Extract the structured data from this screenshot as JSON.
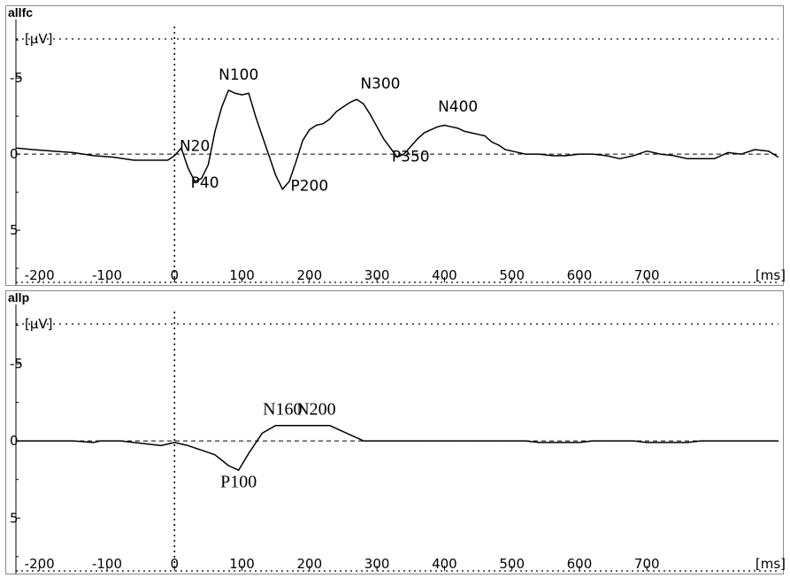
{
  "chart_data": [
    {
      "type": "line",
      "title": "allfc",
      "ylabel": "[µV]",
      "xlabel": "[ms]",
      "xlim": [
        -235,
        895
      ],
      "ylim": [
        -8.5,
        8.6
      ],
      "y_inverted": true,
      "x_ticks": [
        -200,
        -100,
        0,
        100,
        200,
        300,
        400,
        500,
        600,
        700
      ],
      "x_tick_labels": [
        "-200",
        "-100",
        "0",
        "100",
        "200",
        "300",
        "400",
        "500",
        "600",
        "700"
      ],
      "y_ticks": [
        -5,
        0,
        5
      ],
      "y_tick_labels": [
        "-5",
        "0",
        "5"
      ],
      "series": [
        {
          "color": "#000000",
          "x": [
            -235,
            -210,
            -180,
            -150,
            -120,
            -90,
            -60,
            -30,
            -10,
            0,
            10,
            20,
            30,
            40,
            50,
            60,
            70,
            80,
            90,
            100,
            110,
            120,
            130,
            140,
            150,
            160,
            170,
            180,
            190,
            200,
            210,
            220,
            230,
            240,
            250,
            260,
            270,
            280,
            290,
            300,
            310,
            320,
            330,
            340,
            350,
            360,
            370,
            380,
            390,
            400,
            410,
            420,
            430,
            440,
            450,
            460,
            470,
            480,
            490,
            500,
            520,
            540,
            560,
            580,
            600,
            620,
            640,
            660,
            680,
            700,
            720,
            740,
            760,
            780,
            800,
            820,
            840,
            860,
            880,
            895
          ],
          "y": [
            -0.4,
            -0.3,
            -0.2,
            -0.1,
            0.1,
            0.2,
            0.4,
            0.4,
            0.4,
            0.1,
            -0.4,
            0.9,
            1.8,
            1.6,
            0.7,
            -1.5,
            -3.1,
            -4.2,
            -4.0,
            -3.9,
            -4.0,
            -2.5,
            -1.2,
            0.1,
            1.4,
            2.3,
            1.8,
            0.5,
            -0.9,
            -1.6,
            -1.9,
            -2.0,
            -2.3,
            -2.8,
            -3.1,
            -3.4,
            -3.6,
            -3.3,
            -2.6,
            -1.8,
            -1.0,
            -0.4,
            0.2,
            0.0,
            -0.5,
            -1.0,
            -1.4,
            -1.6,
            -1.8,
            -1.9,
            -1.8,
            -1.7,
            -1.5,
            -1.4,
            -1.3,
            -1.2,
            -0.8,
            -0.6,
            -0.3,
            -0.2,
            0.0,
            0.0,
            0.1,
            0.1,
            0.0,
            0.0,
            0.1,
            0.3,
            0.1,
            -0.2,
            0.0,
            0.1,
            0.3,
            0.3,
            0.3,
            -0.1,
            0.0,
            -0.3,
            -0.2,
            0.2
          ]
        }
      ],
      "annotations": [
        {
          "text": "N20",
          "x": 30,
          "y": -0.2
        },
        {
          "text": "P40",
          "x": 45,
          "y": 2.2
        },
        {
          "text": "N100",
          "x": 95,
          "y": -4.9
        },
        {
          "text": "P200",
          "x": 200,
          "y": 2.4
        },
        {
          "text": "N300",
          "x": 305,
          "y": -4.3
        },
        {
          "text": "P350",
          "x": 350,
          "y": 0.5
        },
        {
          "text": "N400",
          "x": 420,
          "y": -2.8
        }
      ]
    },
    {
      "type": "line",
      "title": "allp",
      "ylabel": "[µV]",
      "xlabel": "[ms]",
      "xlim": [
        -235,
        895
      ],
      "ylim": [
        -8.5,
        8.6
      ],
      "y_inverted": true,
      "x_ticks": [
        -200,
        -100,
        0,
        100,
        200,
        300,
        400,
        500,
        600,
        700
      ],
      "x_tick_labels": [
        "-200",
        "-100",
        "0",
        "100",
        "200",
        "300",
        "400",
        "500",
        "600",
        "700"
      ],
      "y_ticks": [
        -5,
        0,
        5
      ],
      "y_tick_labels": [
        "-5",
        "0",
        "5"
      ],
      "series": [
        {
          "color": "#000000",
          "x": [
            -235,
            -150,
            -120,
            -110,
            -80,
            -60,
            -40,
            -20,
            0,
            20,
            40,
            60,
            80,
            95,
            110,
            130,
            150,
            170,
            190,
            210,
            230,
            250,
            270,
            280,
            300,
            320,
            400,
            420,
            520,
            540,
            600,
            620,
            680,
            700,
            760,
            780,
            800,
            820,
            840,
            860,
            880,
            895
          ],
          "y": [
            0.0,
            0.0,
            0.1,
            0.0,
            0.0,
            0.1,
            0.2,
            0.3,
            0.1,
            0.3,
            0.6,
            0.9,
            1.6,
            1.9,
            0.8,
            -0.5,
            -1.0,
            -1.0,
            -1.0,
            -1.0,
            -1.0,
            -0.6,
            -0.2,
            0.0,
            0.0,
            0.0,
            0.0,
            0.0,
            0.0,
            0.1,
            0.1,
            0.0,
            0.0,
            0.1,
            0.1,
            0.0,
            0.0,
            0.0,
            0.0,
            0.0,
            0.0,
            0.0
          ]
        }
      ],
      "annotations": [
        {
          "text": "N160",
          "x": 160,
          "y": -1.7
        },
        {
          "text": "N200",
          "x": 210,
          "y": -1.7
        },
        {
          "text": "P100",
          "x": 95,
          "y": 3.0
        }
      ]
    }
  ]
}
